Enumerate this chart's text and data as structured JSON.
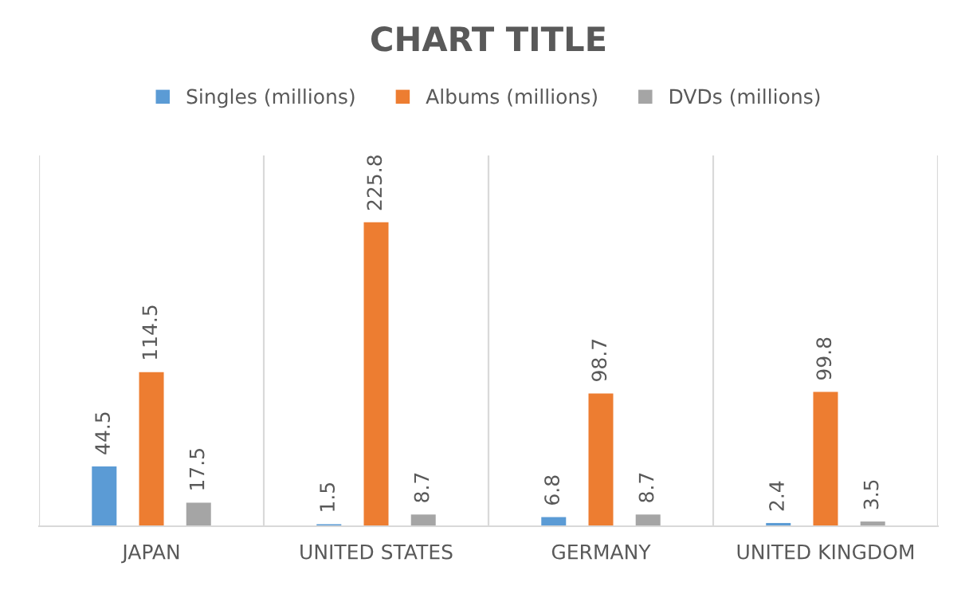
{
  "chart_data": {
    "type": "bar",
    "title": "CHART TITLE",
    "categories": [
      "JAPAN",
      "UNITED STATES",
      "GERMANY",
      "UNITED KINGDOM"
    ],
    "series": [
      {
        "name": "Singles (millions)",
        "color": "#5b9bd5",
        "values": [
          44.5,
          1.5,
          6.8,
          2.4
        ]
      },
      {
        "name": "Albums (millions)",
        "color": "#ed7d31",
        "values": [
          114.5,
          225.8,
          98.7,
          99.8
        ]
      },
      {
        "name": "DVDs (millions)",
        "color": "#a5a5a5",
        "values": [
          17.5,
          8.7,
          8.7,
          3.5
        ]
      }
    ],
    "data_labels": true,
    "grid": "x",
    "legend": "top"
  }
}
